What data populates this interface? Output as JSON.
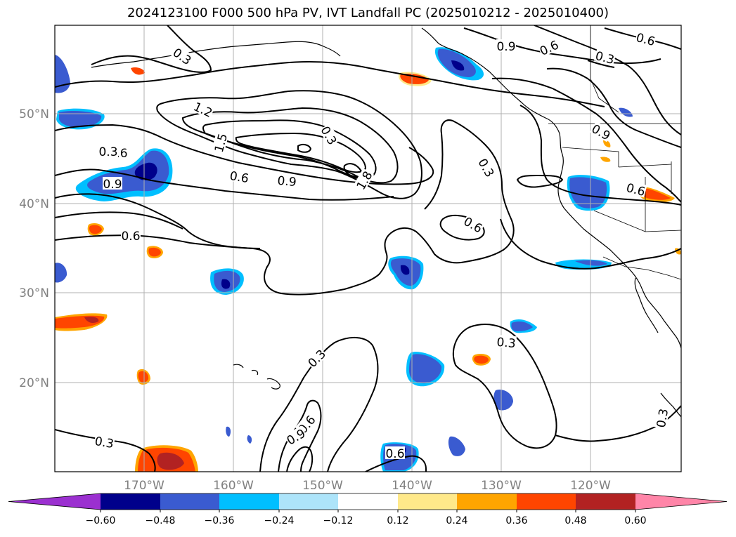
{
  "chart_data": {
    "type": "map_contour",
    "title": "2024123100 F000 500 hPa PV, IVT Landfall PC (2025010212 - 2025010400)",
    "lon_ticks": [
      "170°W",
      "160°W",
      "150°W",
      "140°W",
      "130°W",
      "120°W"
    ],
    "lat_ticks": [
      "50°N",
      "40°N",
      "30°N",
      "20°N"
    ],
    "grid": true,
    "colorbar": {
      "orientation": "horizontal",
      "extend": "both",
      "ticks": [
        "−0.60",
        "−0.48",
        "−0.36",
        "−0.24",
        "−0.12",
        "0.12",
        "0.24",
        "0.36",
        "0.48",
        "0.60"
      ],
      "levels": [
        -0.6,
        -0.48,
        -0.36,
        -0.24,
        -0.12,
        0.12,
        0.24,
        0.36,
        0.48,
        0.6
      ],
      "colors": [
        "#9b30d0",
        "#00008b",
        "#3a5bd0",
        "#00bfff",
        "#ade4fa",
        "#ffffff",
        "#ffe98a",
        "#ffa500",
        "#ff4500",
        "#b22222",
        "#ff85a8"
      ]
    },
    "contour_labels": [
      "0.3",
      "0.6",
      "0.9",
      "1.2",
      "1.5",
      "1.8",
      "0.3",
      "0.6",
      "0.9",
      "0.3",
      "0.6",
      "0.6",
      "0.3",
      "0.3",
      "0.6",
      "0.9",
      "0.6",
      "0.3",
      "0.9",
      "0.6",
      "0.3",
      "0.6",
      "0.9",
      "0.6",
      "0.3",
      "0.3"
    ]
  }
}
